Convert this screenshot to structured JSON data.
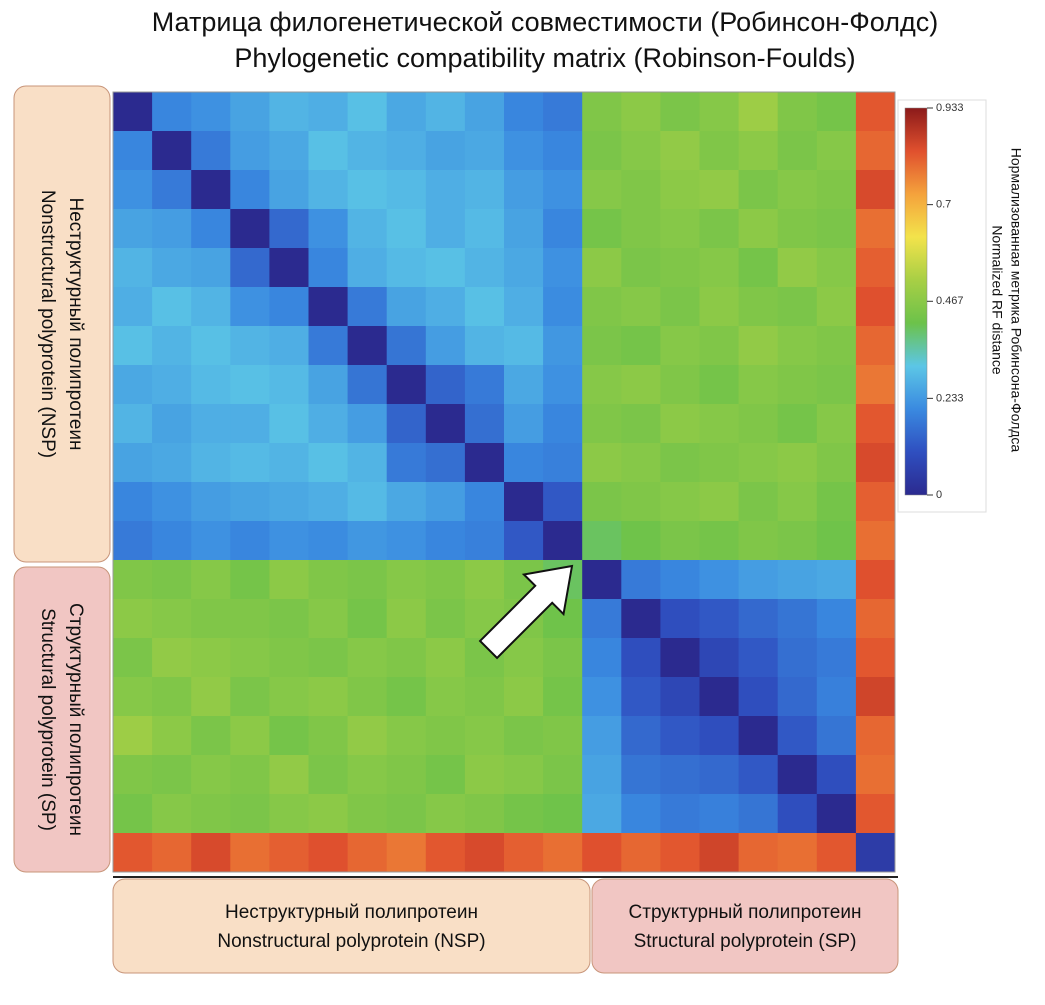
{
  "chart_data": {
    "type": "heatmap",
    "title": "Матрица филогенетической совместимости (Робинсон-Фолдс)",
    "subtitle": "Phylogenetic compatibility matrix (Robinson-Foulds)",
    "colorbar_title": "Нормализованная метрика Робинсона-Фолдса",
    "colorbar_subtitle": "Normalized RF distance",
    "groups": [
      {
        "label_ru": "Неструктурный полипротеин",
        "label_en": "Nonstructural polyprotein (NSP)",
        "color": "#f9dfc6"
      },
      {
        "label_ru": "Структурный полипротеин",
        "label_en": "Structural polyprotein (SP)",
        "color": "#f1c6c3"
      }
    ],
    "zlim": [
      0,
      0.933
    ],
    "zticks": [
      0,
      0.233,
      0.467,
      0.7,
      0.933
    ],
    "colors": [
      "#2b2a8f",
      "#2f4fc0",
      "#3a8ae0",
      "#5cc6e6",
      "#6cc24a",
      "#a8cf45",
      "#f3e34b",
      "#f4a23c",
      "#e0502e",
      "#8b1a1a"
    ],
    "z": [
      [
        0,
        0.2,
        0.22,
        0.25,
        0.28,
        0.27,
        0.3,
        0.26,
        0.28,
        0.25,
        0.2,
        0.18,
        0.45,
        0.47,
        0.44,
        0.46,
        0.5,
        0.45,
        0.43,
        0.82
      ],
      [
        0.2,
        0,
        0.18,
        0.24,
        0.26,
        0.3,
        0.28,
        0.27,
        0.25,
        0.26,
        0.22,
        0.2,
        0.44,
        0.46,
        0.48,
        0.45,
        0.47,
        0.44,
        0.46,
        0.8
      ],
      [
        0.22,
        0.18,
        0,
        0.2,
        0.25,
        0.28,
        0.3,
        0.29,
        0.27,
        0.28,
        0.24,
        0.22,
        0.46,
        0.45,
        0.47,
        0.48,
        0.44,
        0.46,
        0.45,
        0.84
      ],
      [
        0.25,
        0.24,
        0.2,
        0,
        0.15,
        0.22,
        0.28,
        0.3,
        0.27,
        0.29,
        0.25,
        0.2,
        0.43,
        0.45,
        0.46,
        0.44,
        0.47,
        0.45,
        0.44,
        0.79
      ],
      [
        0.28,
        0.26,
        0.25,
        0.15,
        0,
        0.2,
        0.27,
        0.29,
        0.3,
        0.28,
        0.26,
        0.22,
        0.47,
        0.44,
        0.45,
        0.46,
        0.43,
        0.48,
        0.46,
        0.81
      ],
      [
        0.27,
        0.3,
        0.28,
        0.22,
        0.2,
        0,
        0.18,
        0.25,
        0.27,
        0.3,
        0.27,
        0.21,
        0.45,
        0.46,
        0.44,
        0.47,
        0.45,
        0.44,
        0.47,
        0.83
      ],
      [
        0.3,
        0.28,
        0.3,
        0.28,
        0.27,
        0.18,
        0,
        0.17,
        0.24,
        0.28,
        0.29,
        0.23,
        0.44,
        0.43,
        0.46,
        0.45,
        0.48,
        0.46,
        0.45,
        0.8
      ],
      [
        0.26,
        0.27,
        0.29,
        0.3,
        0.29,
        0.25,
        0.17,
        0,
        0.14,
        0.18,
        0.26,
        0.22,
        0.46,
        0.47,
        0.45,
        0.43,
        0.46,
        0.45,
        0.44,
        0.78
      ],
      [
        0.28,
        0.25,
        0.27,
        0.27,
        0.3,
        0.27,
        0.24,
        0.14,
        0,
        0.16,
        0.24,
        0.2,
        0.45,
        0.44,
        0.47,
        0.46,
        0.45,
        0.43,
        0.46,
        0.82
      ],
      [
        0.25,
        0.26,
        0.28,
        0.29,
        0.28,
        0.3,
        0.28,
        0.18,
        0.16,
        0,
        0.2,
        0.19,
        0.47,
        0.46,
        0.44,
        0.45,
        0.46,
        0.47,
        0.45,
        0.84
      ],
      [
        0.2,
        0.22,
        0.24,
        0.25,
        0.26,
        0.27,
        0.29,
        0.26,
        0.24,
        0.2,
        0,
        0.12,
        0.44,
        0.45,
        0.46,
        0.47,
        0.44,
        0.46,
        0.43,
        0.81
      ],
      [
        0.18,
        0.2,
        0.22,
        0.2,
        0.22,
        0.21,
        0.23,
        0.22,
        0.2,
        0.19,
        0.12,
        0,
        0.4,
        0.42,
        0.44,
        0.43,
        0.45,
        0.44,
        0.42,
        0.79
      ],
      [
        0.45,
        0.44,
        0.46,
        0.43,
        0.47,
        0.45,
        0.44,
        0.46,
        0.45,
        0.47,
        0.44,
        0.4,
        0,
        0.18,
        0.2,
        0.22,
        0.24,
        0.25,
        0.26,
        0.83
      ],
      [
        0.47,
        0.46,
        0.45,
        0.45,
        0.44,
        0.46,
        0.43,
        0.47,
        0.44,
        0.46,
        0.45,
        0.42,
        0.18,
        0,
        0.1,
        0.12,
        0.15,
        0.17,
        0.2,
        0.8
      ],
      [
        0.44,
        0.48,
        0.47,
        0.46,
        0.45,
        0.44,
        0.46,
        0.45,
        0.47,
        0.44,
        0.46,
        0.44,
        0.2,
        0.1,
        0,
        0.08,
        0.12,
        0.16,
        0.18,
        0.82
      ],
      [
        0.46,
        0.45,
        0.48,
        0.44,
        0.46,
        0.47,
        0.45,
        0.43,
        0.46,
        0.45,
        0.47,
        0.43,
        0.22,
        0.12,
        0.08,
        0,
        0.1,
        0.15,
        0.19,
        0.85
      ],
      [
        0.5,
        0.47,
        0.44,
        0.47,
        0.43,
        0.45,
        0.48,
        0.46,
        0.45,
        0.46,
        0.44,
        0.45,
        0.24,
        0.15,
        0.12,
        0.1,
        0,
        0.12,
        0.17,
        0.8
      ],
      [
        0.45,
        0.44,
        0.46,
        0.45,
        0.48,
        0.44,
        0.46,
        0.45,
        0.43,
        0.47,
        0.46,
        0.44,
        0.25,
        0.17,
        0.16,
        0.15,
        0.12,
        0,
        0.1,
        0.79
      ],
      [
        0.43,
        0.46,
        0.45,
        0.44,
        0.46,
        0.47,
        0.45,
        0.44,
        0.46,
        0.45,
        0.43,
        0.42,
        0.26,
        0.2,
        0.18,
        0.19,
        0.17,
        0.1,
        0,
        0.82
      ],
      [
        0.82,
        0.8,
        0.84,
        0.79,
        0.81,
        0.83,
        0.8,
        0.78,
        0.82,
        0.84,
        0.81,
        0.79,
        0.83,
        0.8,
        0.82,
        0.85,
        0.8,
        0.79,
        0.82,
        0.05
      ]
    ]
  }
}
